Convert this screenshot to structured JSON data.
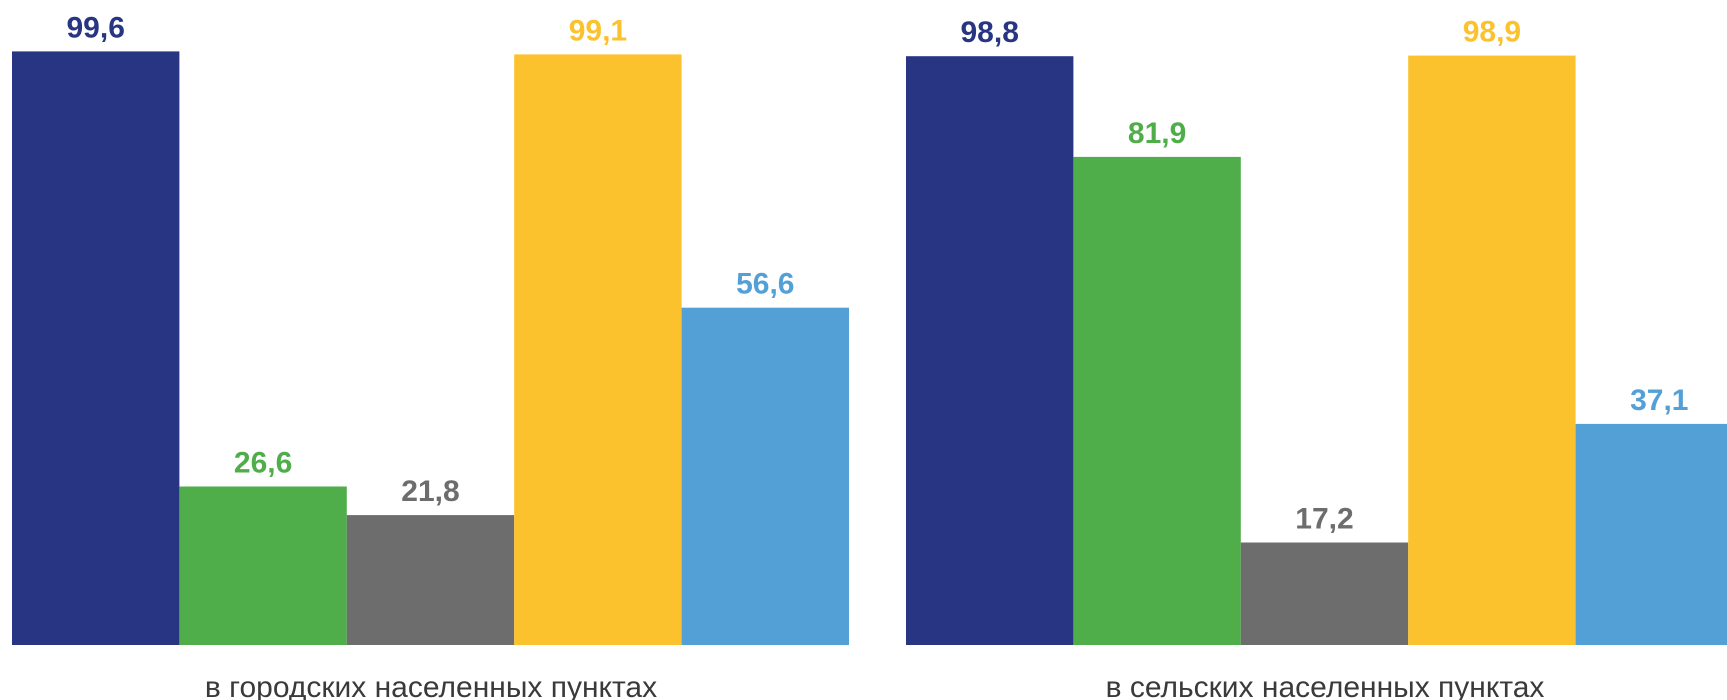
{
  "chart_data": {
    "type": "bar",
    "categories": [
      "в городских населенных пунктах",
      "в сельских населенных пунктах"
    ],
    "series": [
      {
        "values": [
          99.6,
          98.8
        ],
        "labels": [
          "99,6",
          "98,8"
        ],
        "color": "#283583"
      },
      {
        "values": [
          26.6,
          81.9
        ],
        "labels": [
          "26,6",
          "81,9"
        ],
        "color": "#50ae4a"
      },
      {
        "values": [
          21.8,
          17.2
        ],
        "labels": [
          "21,8",
          "17,2"
        ],
        "color": "#6d6d6d"
      },
      {
        "values": [
          99.1,
          98.9
        ],
        "labels": [
          "99,1",
          "98,9"
        ],
        "color": "#fcc22e"
      },
      {
        "values": [
          56.6,
          37.1
        ],
        "labels": [
          "56,6",
          "37,1"
        ],
        "color": "#53a0d7"
      }
    ],
    "ylim": [
      0,
      100
    ],
    "grid": false,
    "legend": "none"
  }
}
